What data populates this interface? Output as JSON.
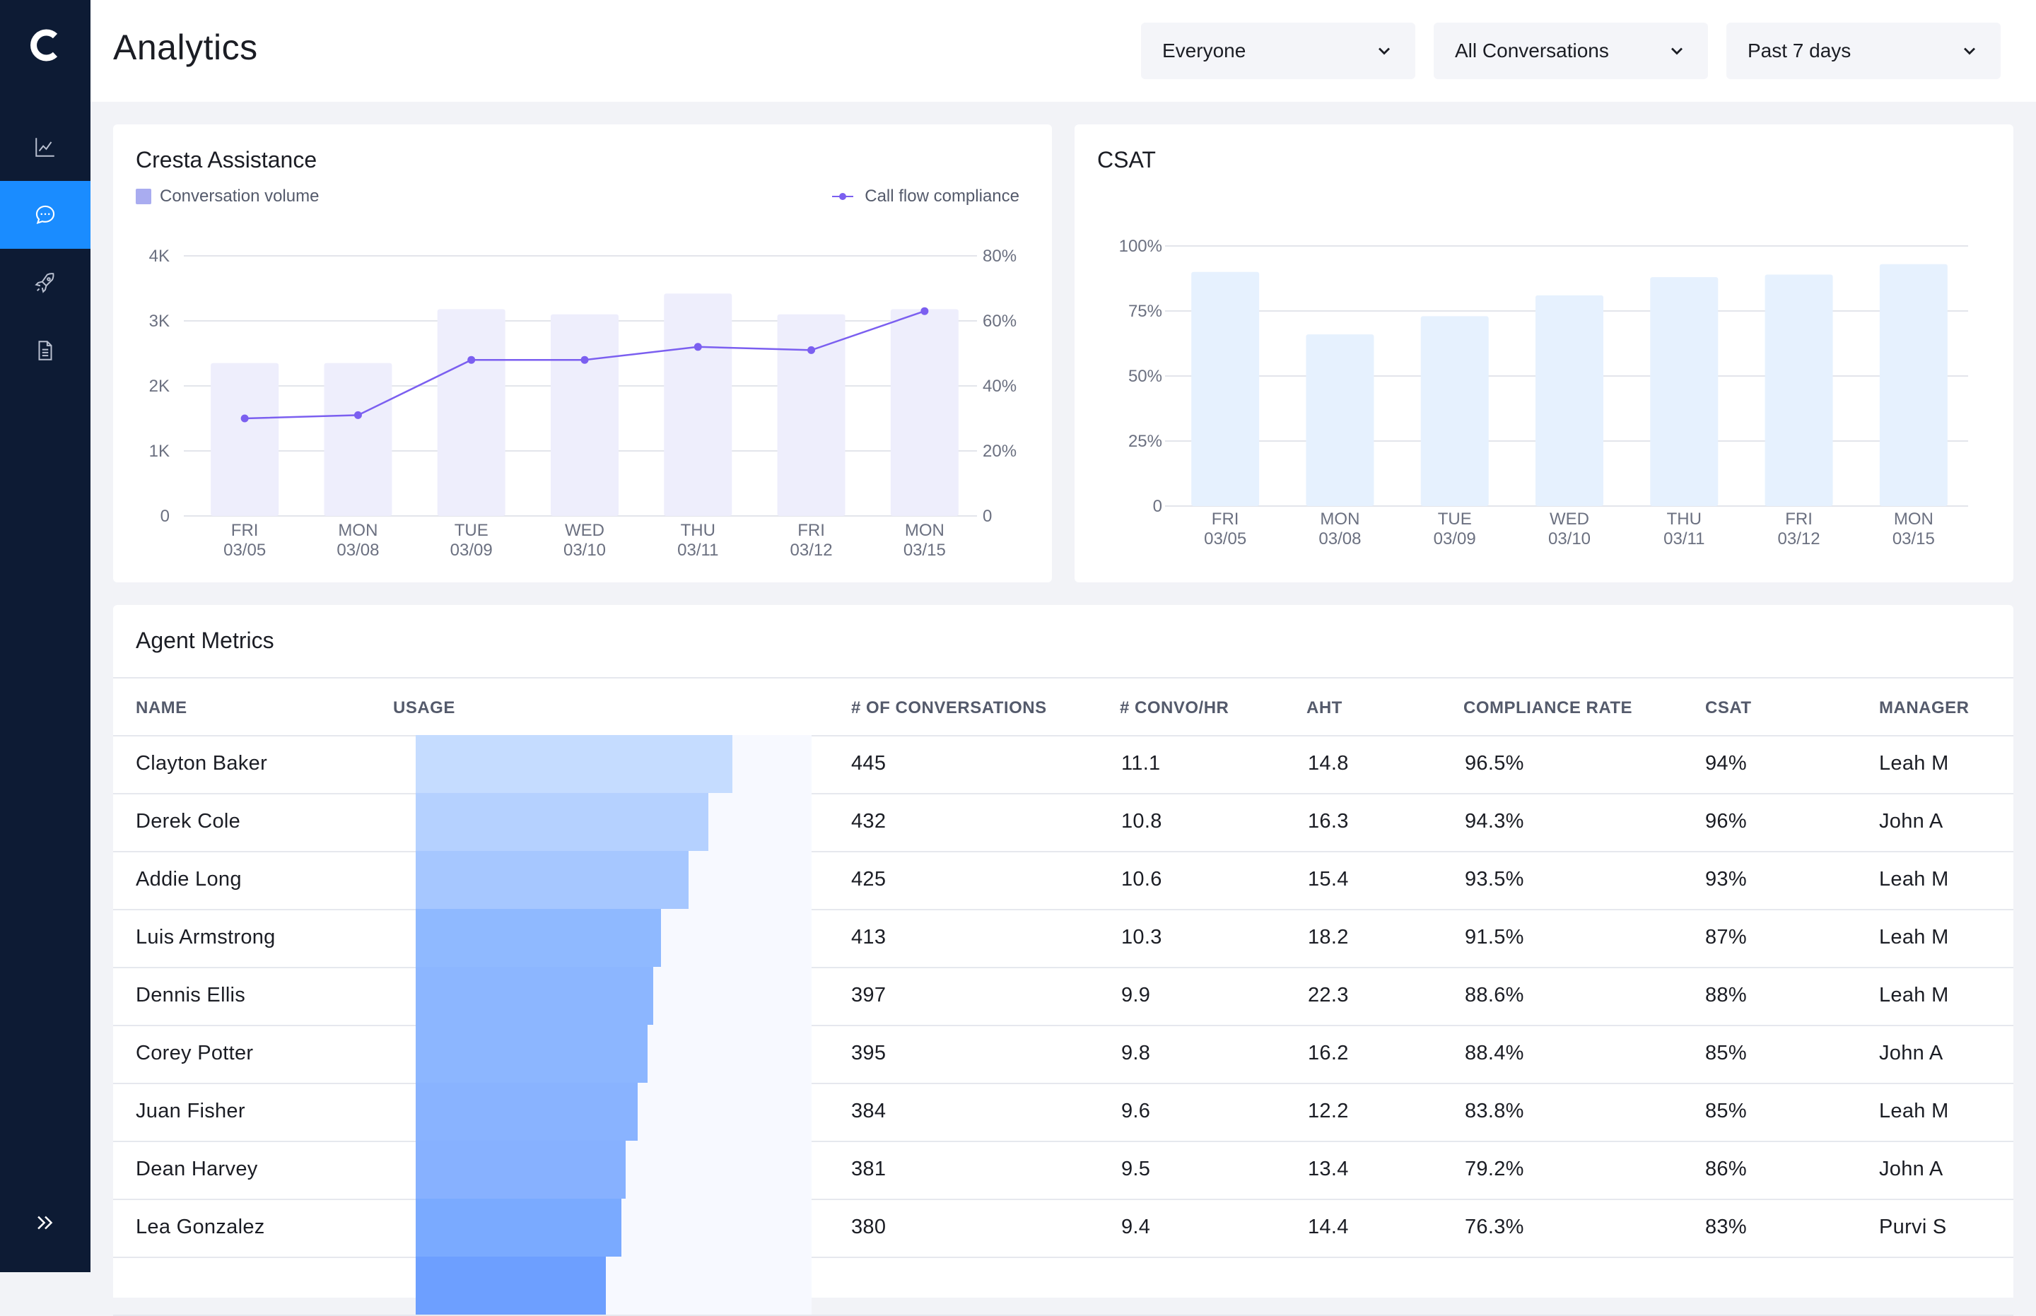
{
  "app": {
    "title": "Analytics"
  },
  "sidebar": {
    "items": [
      {
        "name": "analytics",
        "icon": "line-chart-icon",
        "active": false
      },
      {
        "name": "conversations",
        "icon": "chat-icon",
        "active": true
      },
      {
        "name": "launch",
        "icon": "rocket-icon",
        "active": false
      },
      {
        "name": "documents",
        "icon": "document-icon",
        "active": false
      }
    ],
    "expand_icon": "double-chevron-right-icon"
  },
  "filters": {
    "people": "Everyone",
    "conversations": "All Conversations",
    "range": "Past 7 days"
  },
  "assistance": {
    "title": "Cresta Assistance",
    "legend_volume": "Conversation volume",
    "legend_compliance": "Call flow compliance"
  },
  "csat_card": {
    "title": "CSAT"
  },
  "chart_data": [
    {
      "type": "bar",
      "title": "Cresta Assistance",
      "categories": [
        [
          "FRI",
          "03/05"
        ],
        [
          "MON",
          "03/08"
        ],
        [
          "TUE",
          "03/09"
        ],
        [
          "WED",
          "03/10"
        ],
        [
          "THU",
          "03/11"
        ],
        [
          "FRI",
          "03/12"
        ],
        [
          "MON",
          "03/15"
        ]
      ],
      "series": [
        {
          "name": "Conversation volume",
          "type": "bar",
          "axis": "left",
          "values": [
            2350,
            2350,
            3180,
            3100,
            3420,
            3100,
            3180
          ]
        },
        {
          "name": "Call flow compliance",
          "type": "line",
          "axis": "right",
          "values": [
            30,
            31,
            48,
            48,
            52,
            51,
            63
          ]
        }
      ],
      "ylim_left": [
        0,
        4000
      ],
      "yticks_left": [
        "0",
        "1K",
        "2K",
        "3K",
        "4K"
      ],
      "ylim_right": [
        0,
        80
      ],
      "yticks_right": [
        "0",
        "20%",
        "40%",
        "60%",
        "80%"
      ],
      "grid": true,
      "legend": "top",
      "colors": {
        "bar": "#eeeefc",
        "line": "#7b5ff0",
        "swatch": "#a9acf0"
      }
    },
    {
      "type": "bar",
      "title": "CSAT",
      "categories": [
        [
          "FRI",
          "03/05"
        ],
        [
          "MON",
          "03/08"
        ],
        [
          "TUE",
          "03/09"
        ],
        [
          "WED",
          "03/10"
        ],
        [
          "THU",
          "03/11"
        ],
        [
          "FRI",
          "03/12"
        ],
        [
          "MON",
          "03/15"
        ]
      ],
      "values": [
        90,
        66,
        73,
        81,
        88,
        89,
        93
      ],
      "ylim": [
        0,
        100
      ],
      "yticks": [
        "0",
        "25%",
        "50%",
        "75%",
        "100%"
      ],
      "grid": true,
      "colors": {
        "bar": "#e6f1fe"
      }
    }
  ],
  "agent_metrics": {
    "title": "Agent Metrics",
    "columns": [
      "NAME",
      "USAGE",
      "# OF CONVERSATIONS",
      "# CONVO/HR",
      "AHT",
      "COMPLIANCE RATE",
      "CSAT",
      "MANAGER"
    ],
    "rows": [
      {
        "name": "Clayton Baker",
        "usage": 0.8,
        "usage_color": "#c5dcff",
        "conversations": "445",
        "convo_hr": "11.1",
        "aht": "14.8",
        "compliance": "96.5%",
        "csat": "94%",
        "manager": "Leah M"
      },
      {
        "name": "Derek Cole",
        "usage": 0.74,
        "usage_color": "#b5d1ff",
        "conversations": "432",
        "convo_hr": "10.8",
        "aht": "16.3",
        "compliance": "94.3%",
        "csat": "96%",
        "manager": "John A"
      },
      {
        "name": "Addie Long",
        "usage": 0.69,
        "usage_color": "#a6c7ff",
        "conversations": "425",
        "convo_hr": "10.6",
        "aht": "15.4",
        "compliance": "93.5%",
        "csat": "93%",
        "manager": "Leah M"
      },
      {
        "name": "Luis Armstrong",
        "usage": 0.62,
        "usage_color": "#8fb9ff",
        "conversations": "413",
        "convo_hr": "10.3",
        "aht": "18.2",
        "compliance": "91.5%",
        "csat": "87%",
        "manager": "Leah M"
      },
      {
        "name": "Dennis Ellis",
        "usage": 0.6,
        "usage_color": "#8cb6ff",
        "conversations": "397",
        "convo_hr": "9.9",
        "aht": "22.3",
        "compliance": "88.6%",
        "csat": "88%",
        "manager": "Leah M"
      },
      {
        "name": "Corey Potter",
        "usage": 0.585,
        "usage_color": "#8cb6ff",
        "conversations": "395",
        "convo_hr": "9.8",
        "aht": "16.2",
        "compliance": "88.4%",
        "csat": "85%",
        "manager": "John A"
      },
      {
        "name": "Juan Fisher",
        "usage": 0.56,
        "usage_color": "#89b3ff",
        "conversations": "384",
        "convo_hr": "9.6",
        "aht": "12.2",
        "compliance": "83.8%",
        "csat": "85%",
        "manager": "Leah M"
      },
      {
        "name": "Dean Harvey",
        "usage": 0.53,
        "usage_color": "#87b1ff",
        "conversations": "381",
        "convo_hr": "9.5",
        "aht": "13.4",
        "compliance": "79.2%",
        "csat": "86%",
        "manager": "John A"
      },
      {
        "name": "Lea Gonzalez",
        "usage": 0.52,
        "usage_color": "#7aaaff",
        "conversations": "380",
        "convo_hr": "9.4",
        "aht": "14.4",
        "compliance": "76.3%",
        "csat": "83%",
        "manager": "Purvi S"
      },
      {
        "name": "",
        "usage": 0.48,
        "usage_color": "#6d9fff",
        "conversations": "",
        "convo_hr": "",
        "aht": "",
        "compliance": "",
        "csat": "",
        "manager": ""
      }
    ]
  }
}
